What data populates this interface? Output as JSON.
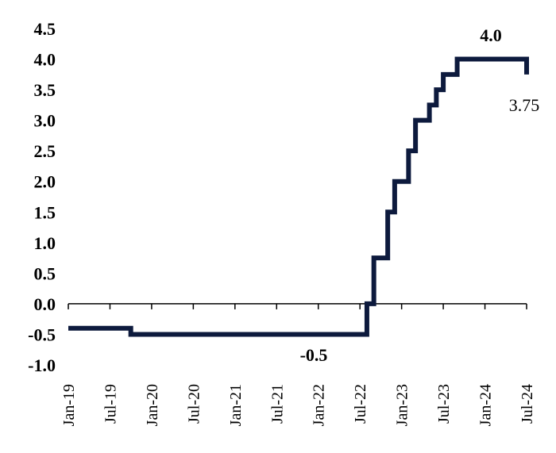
{
  "chart_data": {
    "type": "line",
    "step": true,
    "series": [
      {
        "color": "#0d1a3d",
        "points": [
          [
            "2019-01",
            -0.4
          ],
          [
            "2019-09",
            -0.4
          ],
          [
            "2019-10",
            -0.5
          ],
          [
            "2022-07",
            -0.5
          ],
          [
            "2022-08",
            0.0
          ],
          [
            "2022-09",
            0.75
          ],
          [
            "2022-11",
            1.5
          ],
          [
            "2022-12",
            2.0
          ],
          [
            "2023-02",
            2.5
          ],
          [
            "2023-03",
            3.0
          ],
          [
            "2023-05",
            3.25
          ],
          [
            "2023-06",
            3.5
          ],
          [
            "2023-07",
            3.75
          ],
          [
            "2023-09",
            4.0
          ],
          [
            "2024-06",
            4.0
          ],
          [
            "2024-07",
            3.75
          ]
        ]
      }
    ],
    "yticks": [
      "4.5",
      "4.0",
      "3.5",
      "3.0",
      "2.5",
      "2.0",
      "1.5",
      "1.0",
      "0.5",
      "0.0",
      "-0.5",
      "-1.0"
    ],
    "xticks": [
      "Jan-19",
      "Jul-19",
      "Jan-20",
      "Jul-20",
      "Jan-21",
      "Jul-21",
      "Jan-22",
      "Jul-22",
      "Jan-23",
      "Jul-23",
      "Jan-24",
      "Jul-24"
    ],
    "ylim": [
      -1.0,
      4.5
    ],
    "xlim": [
      "2019-01",
      "2024-07"
    ],
    "annotations": [
      {
        "text": "4.0",
        "bold": true
      },
      {
        "text": "3.75",
        "bold": false
      },
      {
        "text": "-0.5",
        "bold": true
      }
    ],
    "grid": false,
    "legend": "none"
  }
}
